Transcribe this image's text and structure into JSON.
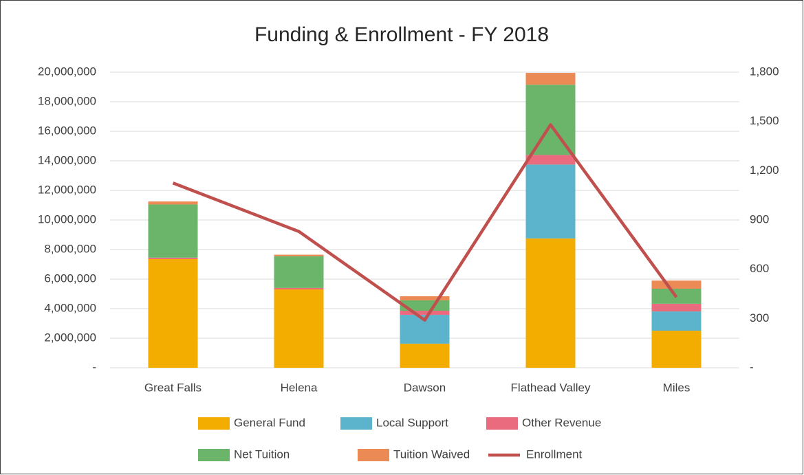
{
  "chart_data": {
    "type": "bar",
    "stacked": true,
    "title": "Funding & Enrollment - FY 2018",
    "categories": [
      "Great Falls",
      "Helena",
      "Dawson",
      "Flathead Valley",
      "Miles"
    ],
    "series": [
      {
        "name": "General Fund",
        "color": "#f2ad00",
        "values": [
          7350000,
          5300000,
          1630000,
          8750000,
          2510000
        ]
      },
      {
        "name": "Local Support",
        "color": "#5bb4cb",
        "values": [
          0,
          0,
          1950000,
          5000000,
          1300000
        ]
      },
      {
        "name": "Other Revenue",
        "color": "#e96b7d",
        "values": [
          100000,
          100000,
          280000,
          650000,
          520000
        ]
      },
      {
        "name": "Net Tuition",
        "color": "#6bb56b",
        "values": [
          3600000,
          2150000,
          700000,
          4750000,
          1020000
        ]
      },
      {
        "name": "Tuition Waived",
        "color": "#ec8a56",
        "values": [
          200000,
          100000,
          280000,
          800000,
          550000
        ]
      },
      {
        "name": "Enrollment",
        "color": "#c0504d",
        "type": "line",
        "axis": "y2",
        "values": [
          1125,
          830,
          290,
          1480,
          430
        ]
      }
    ],
    "ylim": [
      0,
      20000000
    ],
    "yticks": [
      {
        "value": 0,
        "label": "-"
      },
      {
        "value": 2000000,
        "label": "2,000,000"
      },
      {
        "value": 4000000,
        "label": "4,000,000"
      },
      {
        "value": 6000000,
        "label": "6,000,000"
      },
      {
        "value": 8000000,
        "label": "8,000,000"
      },
      {
        "value": 10000000,
        "label": "10,000,000"
      },
      {
        "value": 12000000,
        "label": "12,000,000"
      },
      {
        "value": 14000000,
        "label": "14,000,000"
      },
      {
        "value": 16000000,
        "label": "16,000,000"
      },
      {
        "value": 18000000,
        "label": "18,000,000"
      },
      {
        "value": 20000000,
        "label": "20,000,000"
      }
    ],
    "y2lim": [
      0,
      1800
    ],
    "y2ticks": [
      {
        "value": 0,
        "label": "-"
      },
      {
        "value": 300,
        "label": "300"
      },
      600,
      900,
      {
        "value": 1200,
        "label": "1,200"
      },
      {
        "value": 1500,
        "label": "1,500"
      },
      {
        "value": 1800,
        "label": "1,800"
      }
    ],
    "grid": true
  }
}
